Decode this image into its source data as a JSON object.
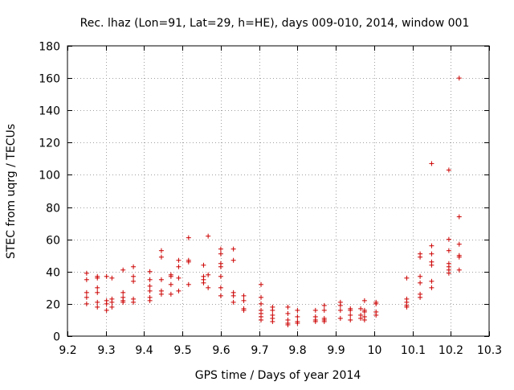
{
  "chart_data": {
    "type": "scatter",
    "title": "Rec. lhaz (Lon=91, Lat=29, h=HE), days 009-010, 2014, window 001",
    "xlabel": "GPS time / Days of year 2014",
    "ylabel": "STEC from uqrg / TECUs",
    "xlim": [
      9.2,
      10.3
    ],
    "ylim": [
      0,
      180
    ],
    "grid": true,
    "marker": "+",
    "marker_color": "#cc0000",
    "xticks": [
      9.2,
      9.3,
      9.4,
      9.5,
      9.6,
      9.7,
      9.8,
      9.9,
      10.0,
      10.1,
      10.2,
      10.3
    ],
    "xtick_labels": [
      "9.2",
      "9.3",
      "9.4",
      "9.5",
      "9.6",
      "9.7",
      "9.8",
      "9.9",
      "10",
      "10.1",
      "10.2",
      "10.3"
    ],
    "yticks": [
      0,
      20,
      40,
      60,
      80,
      100,
      120,
      140,
      160,
      180
    ],
    "ytick_labels": [
      "0",
      "20",
      "40",
      "60",
      "80",
      "100",
      "120",
      "140",
      "160",
      "180"
    ],
    "series": [
      {
        "name": "STEC",
        "points": [
          [
            9.25,
            39
          ],
          [
            9.25,
            35
          ],
          [
            9.25,
            27
          ],
          [
            9.25,
            24
          ],
          [
            9.25,
            20
          ],
          [
            9.278,
            37
          ],
          [
            9.278,
            36
          ],
          [
            9.278,
            30
          ],
          [
            9.278,
            27
          ],
          [
            9.278,
            21
          ],
          [
            9.278,
            18
          ],
          [
            9.302,
            37
          ],
          [
            9.302,
            22
          ],
          [
            9.302,
            20
          ],
          [
            9.302,
            16
          ],
          [
            9.316,
            36
          ],
          [
            9.316,
            23
          ],
          [
            9.316,
            21
          ],
          [
            9.316,
            18
          ],
          [
            9.345,
            41
          ],
          [
            9.345,
            27
          ],
          [
            9.345,
            24
          ],
          [
            9.345,
            22
          ],
          [
            9.345,
            21
          ],
          [
            9.372,
            43
          ],
          [
            9.372,
            37
          ],
          [
            9.372,
            34
          ],
          [
            9.372,
            23
          ],
          [
            9.372,
            21
          ],
          [
            9.415,
            40
          ],
          [
            9.415,
            35
          ],
          [
            9.415,
            31
          ],
          [
            9.415,
            28
          ],
          [
            9.415,
            24
          ],
          [
            9.415,
            22
          ],
          [
            9.445,
            53
          ],
          [
            9.445,
            49
          ],
          [
            9.445,
            35
          ],
          [
            9.445,
            28
          ],
          [
            9.445,
            26
          ],
          [
            9.47,
            38
          ],
          [
            9.47,
            37
          ],
          [
            9.47,
            32
          ],
          [
            9.47,
            26
          ],
          [
            9.49,
            47
          ],
          [
            9.49,
            43
          ],
          [
            9.49,
            36
          ],
          [
            9.49,
            28
          ],
          [
            9.516,
            61
          ],
          [
            9.516,
            47
          ],
          [
            9.516,
            46
          ],
          [
            9.516,
            32
          ],
          [
            9.555,
            44
          ],
          [
            9.555,
            37
          ],
          [
            9.555,
            35
          ],
          [
            9.555,
            33
          ],
          [
            9.567,
            62
          ],
          [
            9.567,
            38
          ],
          [
            9.567,
            30
          ],
          [
            9.6,
            54
          ],
          [
            9.6,
            51
          ],
          [
            9.6,
            45
          ],
          [
            9.6,
            43
          ],
          [
            9.6,
            37
          ],
          [
            9.6,
            30
          ],
          [
            9.6,
            25
          ],
          [
            9.633,
            54
          ],
          [
            9.633,
            47
          ],
          [
            9.633,
            27
          ],
          [
            9.633,
            25
          ],
          [
            9.633,
            21
          ],
          [
            9.66,
            25
          ],
          [
            9.66,
            22
          ],
          [
            9.66,
            17
          ],
          [
            9.66,
            16
          ],
          [
            9.705,
            32
          ],
          [
            9.705,
            24
          ],
          [
            9.705,
            20
          ],
          [
            9.705,
            16
          ],
          [
            9.705,
            14
          ],
          [
            9.705,
            12
          ],
          [
            9.705,
            10
          ],
          [
            9.735,
            18
          ],
          [
            9.735,
            16
          ],
          [
            9.735,
            13
          ],
          [
            9.735,
            11
          ],
          [
            9.735,
            9
          ],
          [
            9.775,
            18
          ],
          [
            9.775,
            14
          ],
          [
            9.775,
            10
          ],
          [
            9.775,
            8
          ],
          [
            9.775,
            7
          ],
          [
            9.8,
            16
          ],
          [
            9.8,
            12
          ],
          [
            9.8,
            9
          ],
          [
            9.8,
            8
          ],
          [
            9.847,
            16
          ],
          [
            9.847,
            12
          ],
          [
            9.847,
            10
          ],
          [
            9.847,
            9
          ],
          [
            9.87,
            19
          ],
          [
            9.87,
            16
          ],
          [
            9.87,
            11
          ],
          [
            9.87,
            10
          ],
          [
            9.87,
            9
          ],
          [
            9.912,
            21
          ],
          [
            9.912,
            19
          ],
          [
            9.912,
            16
          ],
          [
            9.912,
            11
          ],
          [
            9.938,
            17
          ],
          [
            9.938,
            16
          ],
          [
            9.938,
            13
          ],
          [
            9.938,
            10
          ],
          [
            9.965,
            17
          ],
          [
            9.965,
            13
          ],
          [
            9.965,
            11
          ],
          [
            9.975,
            22
          ],
          [
            9.975,
            16
          ],
          [
            9.975,
            15
          ],
          [
            9.975,
            12
          ],
          [
            9.975,
            10
          ],
          [
            10.005,
            21
          ],
          [
            10.005,
            20
          ],
          [
            10.005,
            15
          ],
          [
            10.005,
            13
          ],
          [
            10.085,
            36
          ],
          [
            10.085,
            23
          ],
          [
            10.085,
            21
          ],
          [
            10.085,
            19
          ],
          [
            10.085,
            18
          ],
          [
            10.12,
            51
          ],
          [
            10.12,
            49
          ],
          [
            10.12,
            37
          ],
          [
            10.12,
            33
          ],
          [
            10.12,
            26
          ],
          [
            10.12,
            24
          ],
          [
            10.15,
            107
          ],
          [
            10.15,
            56
          ],
          [
            10.15,
            51
          ],
          [
            10.15,
            46
          ],
          [
            10.15,
            44
          ],
          [
            10.15,
            34
          ],
          [
            10.15,
            30
          ],
          [
            10.195,
            103
          ],
          [
            10.195,
            60
          ],
          [
            10.195,
            53
          ],
          [
            10.195,
            45
          ],
          [
            10.195,
            43
          ],
          [
            10.195,
            41
          ],
          [
            10.195,
            39
          ],
          [
            10.222,
            160
          ],
          [
            10.222,
            74
          ],
          [
            10.222,
            57
          ],
          [
            10.222,
            50
          ],
          [
            10.222,
            49
          ],
          [
            10.222,
            41
          ]
        ]
      }
    ]
  }
}
